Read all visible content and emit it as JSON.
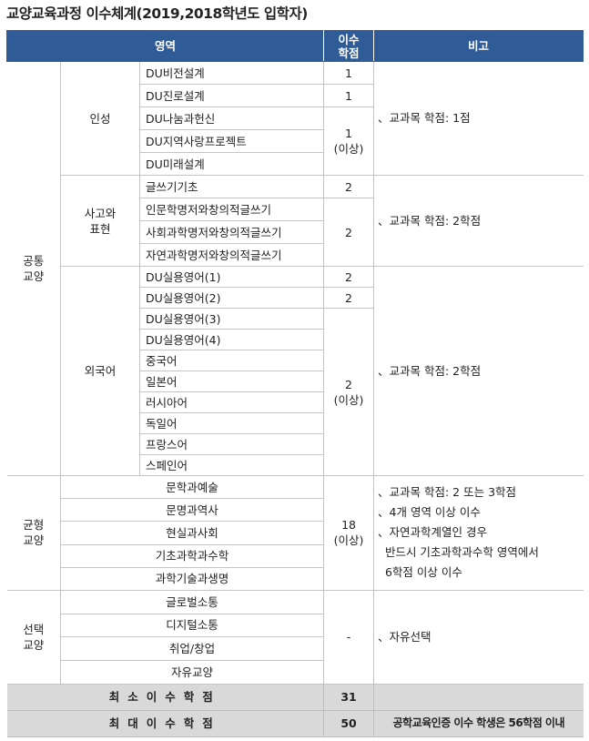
{
  "title": "교양교육과정 이수체계(2019,2018학년도 입학자)",
  "header": {
    "area": "영역",
    "credits": "이수\n학점",
    "note": "비고"
  },
  "colors": {
    "header_bg": "#2f5b97",
    "summary_bg": "#d9d9d9",
    "grid": "#c4c4c4"
  },
  "groups": [
    {
      "name": "공통\n교양",
      "subs": [
        {
          "name": "인성",
          "courses": [
            "DU비전설계",
            "DU진로설계",
            "DU나눔과헌신",
            "DU지역사랑프로젝트",
            "DU미래설계"
          ],
          "credits": [
            {
              "value": "1",
              "span": 1
            },
            {
              "value": "1",
              "span": 1
            },
            {
              "value": "1\n(이상)",
              "span": 3
            }
          ],
          "note": "、교과목 학점: 1점"
        },
        {
          "name": "사고와\n표현",
          "courses": [
            "글쓰기기초",
            "인문학명저와창의적글쓰기",
            "사회과학명저와창의적글쓰기",
            "자연과학명저와창의적글쓰기"
          ],
          "credits": [
            {
              "value": "2",
              "span": 1
            },
            {
              "value": "2",
              "span": 3
            }
          ],
          "note": "、교과목 학점: 2학점"
        },
        {
          "name": "외국어",
          "courses": [
            "DU실용영어(1)",
            "DU실용영어(2)",
            "DU실용영어(3)",
            "DU실용영어(4)",
            "중국어",
            "일본어",
            "러시아어",
            "독일어",
            "프랑스어",
            "스페인어"
          ],
          "credits": [
            {
              "value": "2",
              "span": 1
            },
            {
              "value": "2",
              "span": 1
            },
            {
              "value": "2\n(이상)",
              "span": 8
            }
          ],
          "note": "、교과목 학점: 2학점"
        }
      ]
    },
    {
      "name": "균형\n교양",
      "courses": [
        "문학과예술",
        "문명과역사",
        "현실과사회",
        "기초과학과수학",
        "과학기술과생명"
      ],
      "credits": [
        {
          "value": "18\n(이상)",
          "span": 5
        }
      ],
      "note": "、교과목 학점: 2 또는 3학점\n、4개 영역 이상 이수\n、자연과학계열인 경우\n  반드시 기초과학과수학 영역에서\n  6학점 이상 이수"
    },
    {
      "name": "선택\n교양",
      "courses": [
        "글로벌소통",
        "디지털소통",
        "취업/창업",
        "자유교양"
      ],
      "credits": [
        {
          "value": "-",
          "span": 4
        }
      ],
      "note": "、자유선택"
    }
  ],
  "summary": [
    {
      "label": "최소이수학점",
      "value": "31",
      "note": ""
    },
    {
      "label": "최대이수학점",
      "value": "50",
      "note": "공학교육인증 이수 학생은 56학점 이내"
    }
  ]
}
